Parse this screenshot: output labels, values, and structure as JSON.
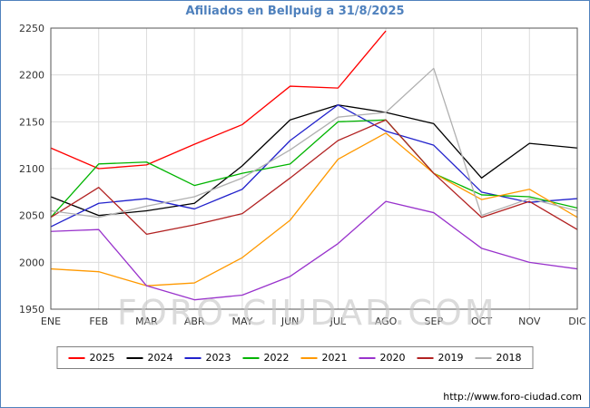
{
  "title": "Afiliados en Bellpuig a 31/8/2025",
  "watermark": "FORO-CIUDAD.COM",
  "footer_url": "http://www.foro-ciudad.com",
  "chart_data": {
    "type": "line",
    "title": "Afiliados en Bellpuig a 31/8/2025",
    "xlabel": "",
    "ylabel": "",
    "ylim": [
      1950,
      2250
    ],
    "ytick_step": 50,
    "grid": true,
    "legend_position": "bottom",
    "categories": [
      "ENE",
      "FEB",
      "MAR",
      "ABR",
      "MAY",
      "JUN",
      "JUL",
      "AGO",
      "SEP",
      "OCT",
      "NOV",
      "DIC"
    ],
    "series": [
      {
        "name": "2025",
        "color": "#ff0000",
        "values": [
          2122,
          2100,
          2104,
          2126,
          2147,
          2188,
          2186,
          2247
        ]
      },
      {
        "name": "2024",
        "color": "#000000",
        "values": [
          2070,
          2050,
          2055,
          2063,
          2103,
          2152,
          2168,
          2160,
          2148,
          2090,
          2127,
          2122
        ]
      },
      {
        "name": "2023",
        "color": "#2222cc",
        "values": [
          2038,
          2063,
          2068,
          2057,
          2078,
          2130,
          2168,
          2140,
          2125,
          2075,
          2064,
          2068
        ]
      },
      {
        "name": "2022",
        "color": "#00b400",
        "values": [
          2048,
          2105,
          2107,
          2082,
          2095,
          2105,
          2150,
          2152,
          2095,
          2072,
          2070,
          2058
        ]
      },
      {
        "name": "2021",
        "color": "#ff9900",
        "values": [
          1993,
          1990,
          1975,
          1978,
          2005,
          2045,
          2110,
          2138,
          2095,
          2067,
          2078,
          2048
        ]
      },
      {
        "name": "2020",
        "color": "#9933cc",
        "values": [
          2033,
          2035,
          1975,
          1960,
          1965,
          1985,
          2020,
          2065,
          2053,
          2015,
          2000,
          1993
        ]
      },
      {
        "name": "2019",
        "color": "#b22222",
        "values": [
          2048,
          2080,
          2030,
          2040,
          2052,
          2090,
          2130,
          2152,
          2095,
          2048,
          2065,
          2035
        ]
      },
      {
        "name": "2018",
        "color": "#b0b0b0",
        "values": [
          2055,
          2048,
          2060,
          2070,
          2090,
          2120,
          2155,
          2160,
          2207,
          2050,
          2068,
          2055
        ]
      }
    ]
  }
}
